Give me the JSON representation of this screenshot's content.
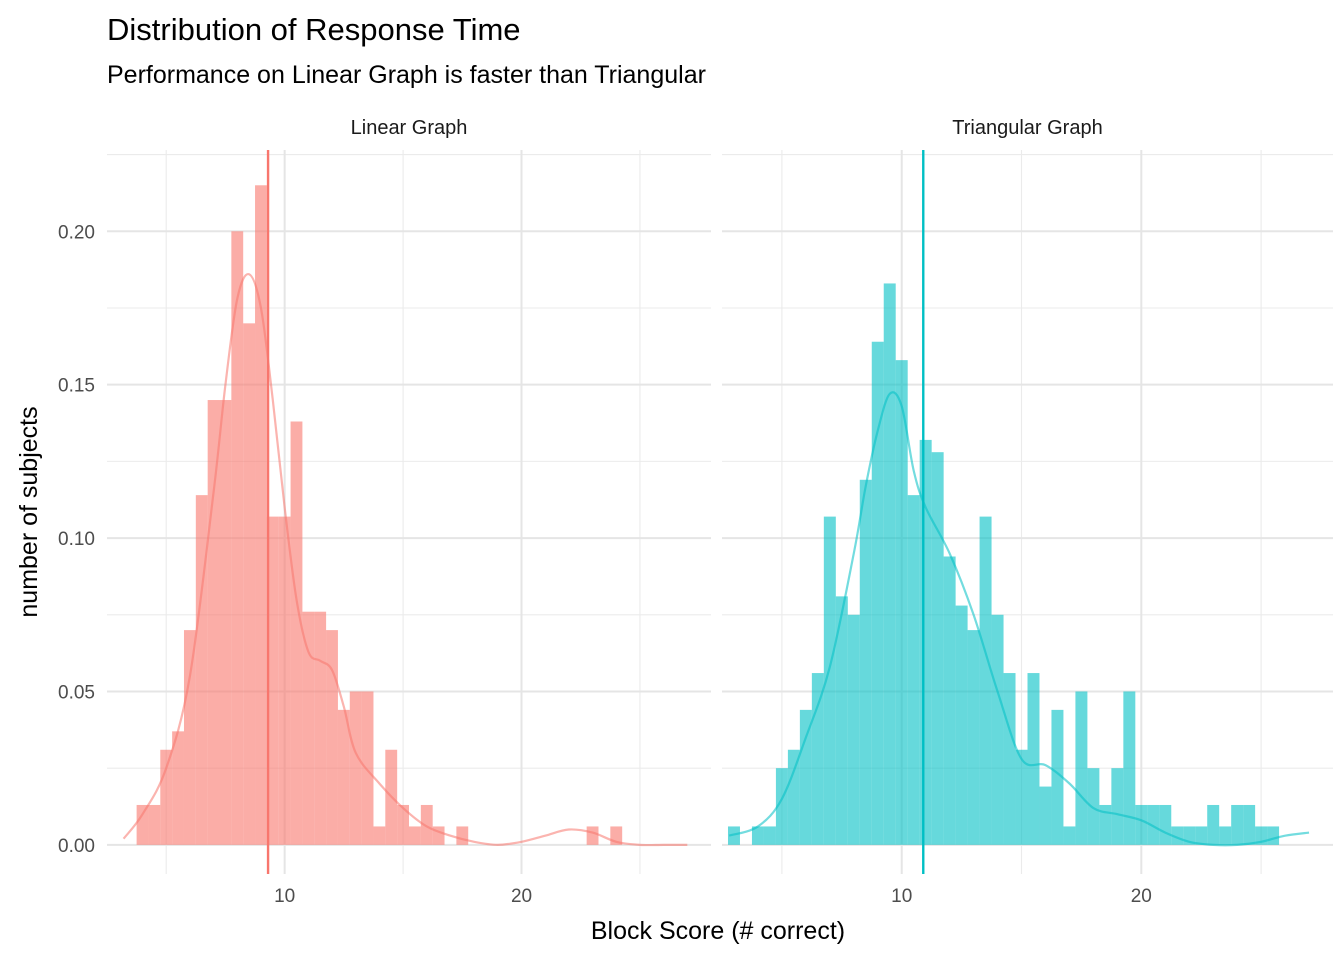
{
  "chart_data": {
    "type": "histogram",
    "title": "Distribution of Response Time",
    "subtitle": "Performance on Linear Graph is faster than Triangular",
    "xlabel": "Block Score (# correct)",
    "ylabel": "number of subjects",
    "xlim": [
      2.5,
      28
    ],
    "ylim": [
      -0.0095,
      0.2265
    ],
    "x_ticks": [
      10,
      20
    ],
    "y_ticks": [
      0.0,
      0.05,
      0.1,
      0.15,
      0.2
    ],
    "y_tick_labels": [
      "0.00",
      "0.05",
      "0.10",
      "0.15",
      "0.20"
    ],
    "grid": true,
    "bin_width": 0.5,
    "panels": [
      {
        "label": "Linear Graph",
        "color": "#F8766D",
        "mean": 9.3,
        "bins_start": 3.75,
        "density": [
          0.013,
          0.013,
          0.031,
          0.037,
          0.07,
          0.114,
          0.145,
          0.145,
          0.2,
          0.17,
          0.215,
          0.107,
          0.107,
          0.138,
          0.076,
          0.076,
          0.07,
          0.044,
          0.05,
          0.05,
          0.006,
          0.031,
          0.013,
          0.006,
          0.013,
          0.006,
          0,
          0.006,
          0,
          0,
          0,
          0,
          0,
          0,
          0,
          0,
          0,
          0,
          0.006,
          0,
          0.006
        ],
        "density_curve": {
          "x": [
            3.2,
            4,
            5,
            6,
            7,
            7.5,
            8,
            8.5,
            9,
            9.5,
            10,
            10.5,
            11,
            11.5,
            12,
            12.5,
            13,
            14,
            15,
            16,
            17,
            18,
            19,
            20,
            21,
            22,
            23,
            24,
            25,
            26,
            27
          ],
          "y": [
            0.002,
            0.01,
            0.025,
            0.055,
            0.115,
            0.15,
            0.178,
            0.186,
            0.175,
            0.145,
            0.11,
            0.08,
            0.063,
            0.06,
            0.057,
            0.045,
            0.03,
            0.02,
            0.012,
            0.006,
            0.003,
            0.001,
            0,
            0.001,
            0.003,
            0.005,
            0.004,
            0.001,
            0,
            0,
            0
          ]
        }
      },
      {
        "label": "Triangular Graph",
        "color": "#00BFC4",
        "mean": 10.9,
        "bins_start": 2.75,
        "density": [
          0.006,
          0,
          0.006,
          0.006,
          0.025,
          0.031,
          0.044,
          0.056,
          0.107,
          0.081,
          0.075,
          0.119,
          0.164,
          0.183,
          0.158,
          0.114,
          0.132,
          0.128,
          0.094,
          0.078,
          0.07,
          0.107,
          0.075,
          0.056,
          0.031,
          0.056,
          0.019,
          0.044,
          0.006,
          0.05,
          0.025,
          0.013,
          0.025,
          0.05,
          0.013,
          0.013,
          0.013,
          0.006,
          0.006,
          0.006,
          0.013,
          0.006,
          0.013,
          0.013,
          0.006,
          0.006,
          0,
          0,
          0,
          0,
          0,
          0,
          0,
          0,
          0,
          0,
          0,
          0,
          0,
          0,
          0,
          0,
          0,
          0,
          0.006
        ],
        "density_curve": {
          "x": [
            2.8,
            4,
            5,
            6,
            7,
            8,
            8.5,
            9,
            9.5,
            10,
            10.5,
            11,
            12,
            13,
            14,
            15,
            16,
            17,
            18,
            19,
            20,
            21,
            22,
            23,
            24,
            25,
            26,
            27
          ],
          "y": [
            0.003,
            0.006,
            0.015,
            0.035,
            0.058,
            0.095,
            0.117,
            0.135,
            0.147,
            0.143,
            0.122,
            0.11,
            0.095,
            0.075,
            0.05,
            0.028,
            0.026,
            0.02,
            0.012,
            0.01,
            0.008,
            0.004,
            0.001,
            0,
            0,
            0.001,
            0.003,
            0.004
          ]
        }
      }
    ]
  }
}
